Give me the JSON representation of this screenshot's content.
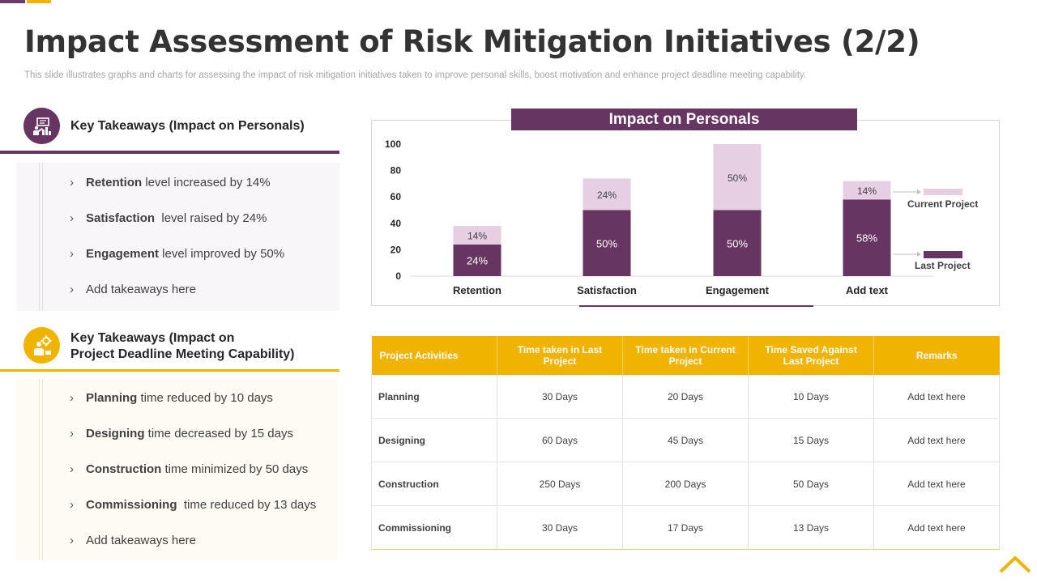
{
  "title": "Impact Assessment of Risk Mitigation Initiatives (2/2)",
  "subtitle": "This slide illustrates graphs and charts for assessing the impact of risk mitigation initiatives taken to improve personal skills, boost motivation and enhance project deadline meeting capability.",
  "colors": {
    "purple": "#673561",
    "purple_light": "#e6cfe3",
    "gold": "#f0b400"
  },
  "personals": {
    "heading": "Key Takeaways  (Impact on Personals)",
    "icon": "presentation-icon",
    "items": [
      {
        "bold": "Retention",
        "text": " level increased by 14%"
      },
      {
        "bold": "Satisfaction",
        "text": "  level raised by 24%"
      },
      {
        "bold": "Engagement",
        "text": " level improved by 50%"
      },
      {
        "bold": "",
        "text": "Add takeaways here"
      }
    ]
  },
  "deadline": {
    "heading_line1": "Key Takeaways  (Impact on",
    "heading_line2": "Project Deadline Meeting Capability)",
    "icon": "gear-person-icon",
    "items": [
      {
        "bold": "Planning",
        "text": " time reduced by 10 days"
      },
      {
        "bold": "Designing",
        "text": " time decreased by 15 days"
      },
      {
        "bold": "Construction",
        "text": " time minimized by 50 days"
      },
      {
        "bold": "Commissioning",
        "text": "  time reduced by 13 days"
      },
      {
        "bold": "",
        "text": "Add takeaways here"
      }
    ]
  },
  "chart_data": {
    "type": "bar",
    "stacked": true,
    "title": "Impact on Personals",
    "categories": [
      "Retention",
      "Satisfaction",
      "Engagement",
      "Add text"
    ],
    "series": [
      {
        "name": "Last Project",
        "values": [
          24,
          50,
          50,
          58
        ],
        "labels": [
          "24%",
          "50%",
          "50%",
          "58%"
        ],
        "color": "#673561"
      },
      {
        "name": "Current Project",
        "values": [
          14,
          24,
          50,
          14
        ],
        "labels": [
          "14%",
          "24%",
          "50%",
          "14%"
        ],
        "color": "#e6cfe3"
      }
    ],
    "yticks": [
      0,
      20,
      40,
      60,
      80,
      100
    ],
    "ylim": [
      0,
      100
    ],
    "legend": "right",
    "grid": false
  },
  "table": {
    "headers": [
      "Project Activities",
      "Time taken in Last Project",
      "Time taken in Current Project",
      "Time Saved Against Last Project",
      "Remarks"
    ],
    "rows": [
      [
        "Planning",
        "30 Days",
        "20 Days",
        "10 Days",
        "Add text here"
      ],
      [
        "Designing",
        "60 Days",
        "45 Days",
        "15 Days",
        "Add text here"
      ],
      [
        "Construction",
        "250 Days",
        "200 Days",
        "50 Days",
        "Add text here"
      ],
      [
        "Commissioning",
        "30 Days",
        "17 Days",
        "13 Days",
        "Add text here"
      ]
    ]
  },
  "home_icon": "home-icon"
}
